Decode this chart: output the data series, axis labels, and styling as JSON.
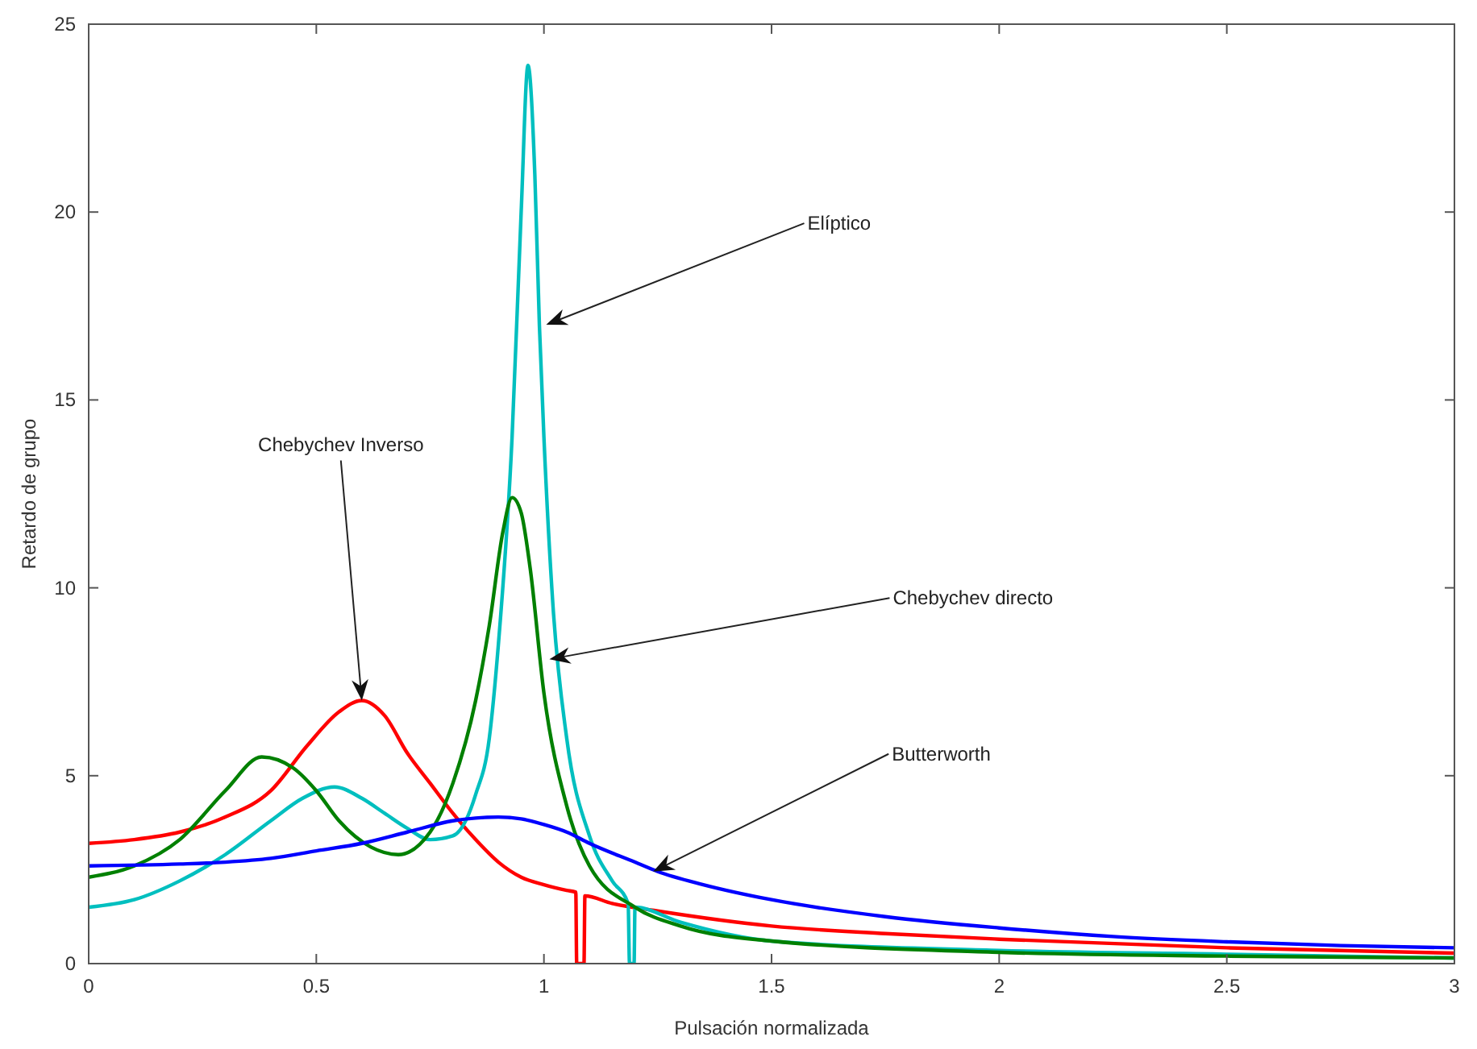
{
  "chart_data": {
    "type": "line",
    "xlabel": "Pulsación normalizada",
    "ylabel": "Retardo de grupo",
    "xlim": [
      0,
      3
    ],
    "ylim": [
      0,
      25
    ],
    "xticks": [
      0,
      0.5,
      1,
      1.5,
      2,
      2.5,
      3
    ],
    "yticks": [
      0,
      5,
      10,
      15,
      20,
      25
    ],
    "grid": false,
    "marker": "none",
    "line_style": "solid",
    "series": [
      {
        "color": "#ff0000",
        "x": [
          0,
          0.1,
          0.2,
          0.3,
          0.4,
          0.48,
          0.55,
          0.6,
          0.65,
          0.7,
          0.75,
          0.8,
          0.85,
          0.9,
          0.95,
          1.0,
          1.05,
          1.07,
          1.072,
          1.088,
          1.09,
          1.15,
          1.25,
          1.5,
          1.75,
          2,
          2.5,
          3
        ],
        "values": [
          3.2,
          3.3,
          3.5,
          3.9,
          4.6,
          5.8,
          6.7,
          7.0,
          6.6,
          5.6,
          4.8,
          4.0,
          3.3,
          2.7,
          2.3,
          2.1,
          1.95,
          1.9,
          0,
          0,
          1.8,
          1.6,
          1.4,
          1.0,
          0.8,
          0.65,
          0.42,
          0.28
        ]
      },
      {
        "color": "#00bfbf",
        "x": [
          0,
          0.1,
          0.2,
          0.3,
          0.4,
          0.47,
          0.54,
          0.6,
          0.65,
          0.7,
          0.75,
          0.8,
          0.85,
          0.88,
          0.9,
          0.93,
          0.95,
          0.965,
          0.98,
          0.99,
          1.0,
          1.02,
          1.05,
          1.1,
          1.15,
          1.185,
          1.188,
          1.198,
          1.2,
          1.3,
          1.5,
          2,
          2.5,
          3
        ],
        "values": [
          1.5,
          1.7,
          2.2,
          2.9,
          3.8,
          4.4,
          4.7,
          4.4,
          4.0,
          3.6,
          3.3,
          3.4,
          4.5,
          6.0,
          8.5,
          14,
          20,
          23.9,
          21,
          17,
          14,
          9.5,
          6.0,
          3.4,
          2.2,
          1.6,
          0,
          0,
          1.5,
          1.1,
          0.6,
          0.35,
          0.25,
          0.15
        ]
      },
      {
        "color": "#008000",
        "x": [
          0,
          0.1,
          0.2,
          0.3,
          0.38,
          0.45,
          0.5,
          0.55,
          0.62,
          0.68,
          0.75,
          0.8,
          0.85,
          0.88,
          0.91,
          0.93,
          0.95,
          0.97,
          1.0,
          1.05,
          1.1,
          1.2,
          1.3,
          1.5,
          2,
          2.5,
          3
        ],
        "values": [
          2.3,
          2.6,
          3.3,
          4.6,
          5.5,
          5.2,
          4.6,
          3.8,
          3.1,
          2.9,
          3.5,
          4.8,
          7.0,
          9.0,
          11.5,
          12.4,
          12.0,
          10.5,
          7.2,
          4.2,
          2.6,
          1.5,
          1.0,
          0.6,
          0.3,
          0.2,
          0.15
        ]
      },
      {
        "color": "#0000ff",
        "x": [
          0,
          0.2,
          0.3,
          0.4,
          0.5,
          0.6,
          0.7,
          0.8,
          0.9,
          0.95,
          1.0,
          1.05,
          1.1,
          1.2,
          1.25,
          1.35,
          1.5,
          1.75,
          2,
          2.25,
          2.5,
          2.75,
          3
        ],
        "values": [
          2.6,
          2.65,
          2.7,
          2.8,
          3.0,
          3.2,
          3.5,
          3.8,
          3.9,
          3.85,
          3.7,
          3.5,
          3.2,
          2.7,
          2.45,
          2.1,
          1.7,
          1.25,
          0.95,
          0.72,
          0.58,
          0.48,
          0.42
        ]
      }
    ],
    "annotations": [
      {
        "text": "Chebychev Inverso",
        "x": 0.6,
        "y": 7.0
      },
      {
        "text": "Elíptico",
        "x": 1.005,
        "y": 17.0
      },
      {
        "text": "Chebychev directo",
        "x": 1.012,
        "y": 8.1
      },
      {
        "text": "Butterworth",
        "x": 1.24,
        "y": 2.45
      }
    ]
  }
}
